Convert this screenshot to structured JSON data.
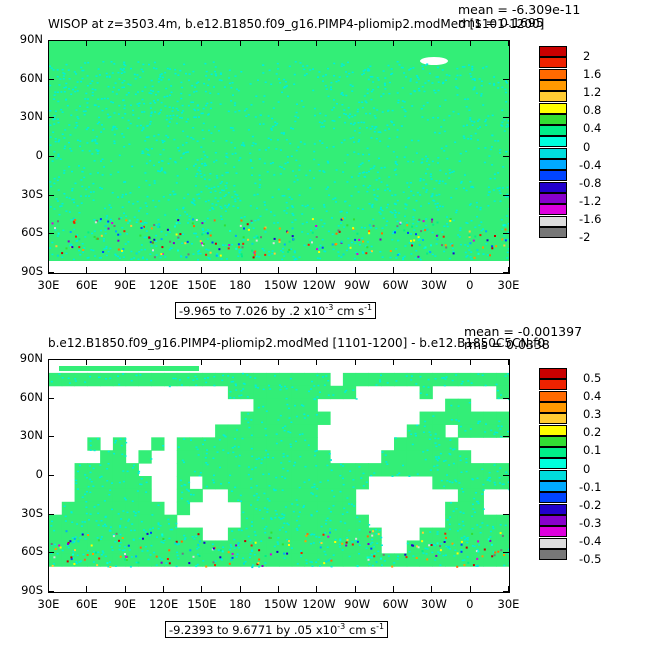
{
  "panels": [
    {
      "title": "WISOP at z=3503.4m, b.e12.B1850.f09_g16.PIMP4-pliomip2.modMed [1101-1200]",
      "mean_text": "mean = -6.309e-11",
      "rms_text": "rms = 0.1695",
      "range_text": "-9.965 to 7.026 by .2 x10",
      "range_exp": "-3",
      "range_units": " cm s",
      "range_units_exp": "-1",
      "legend_values": [
        "2",
        "1.6",
        "1.2",
        "0.8",
        "0.4",
        "0",
        "-0.4",
        "-0.8",
        "-1.2",
        "-1.6",
        "-2"
      ]
    },
    {
      "title": "b.e12.B1850.f09_g16.PIMP4-pliomip2.modMed [1101-1200] - b.e12.B1850C5CN.f0",
      "mean_text": "mean = -0.001397",
      "rms_text": "rms = 0.0338",
      "range_text": "-9.2393 to 9.6771 by .05 x10",
      "range_exp": "-3",
      "range_units": " cm s",
      "range_units_exp": "-1",
      "legend_values": [
        "0.5",
        "0.4",
        "0.3",
        "0.2",
        "0.1",
        "0",
        "-0.1",
        "-0.2",
        "-0.3",
        "-0.4",
        "-0.5"
      ]
    }
  ],
  "lat_labels": [
    "90N",
    "60N",
    "30N",
    "0",
    "30S",
    "60S",
    "90S"
  ],
  "lon_labels": [
    "30E",
    "60E",
    "90E",
    "120E",
    "150E",
    "180",
    "150W",
    "120W",
    "90W",
    "60W",
    "30W",
    "0",
    "30E"
  ],
  "colors": {
    "legend_top_to_bottom": [
      "#c80000",
      "#ee2200",
      "#ff6a00",
      "#ff9900",
      "#ffcc33",
      "#ffff00",
      "#33dd33",
      "#00ee88",
      "#00ffdd",
      "#00dddd",
      "#00aaff",
      "#0044ff",
      "#2200cc",
      "#8800cc",
      "#dd00dd",
      "#dddddd",
      "#777777"
    ],
    "ocean_panel1": "#33ee77",
    "ocean_panel2": "#33ee77",
    "noise_cyan": "#00eedd",
    "land": "#ffffff"
  }
}
